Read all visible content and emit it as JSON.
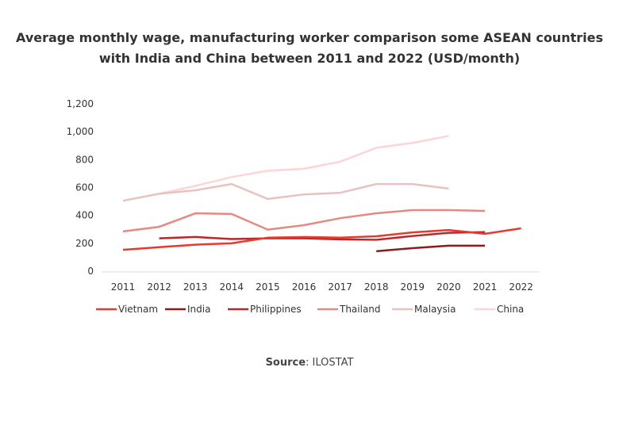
{
  "chart_data": {
    "type": "line",
    "title": "Average monthly wage, manufacturing worker comparison some ASEAN countries with India and China between 2011 and 2022 (USD/month)",
    "x": [
      2011,
      2012,
      2013,
      2014,
      2015,
      2016,
      2017,
      2018,
      2019,
      2020,
      2021,
      2022
    ],
    "ylim": [
      0,
      1200
    ],
    "yticks": [
      0,
      200,
      400,
      600,
      800,
      1000,
      1200
    ],
    "ytick_labels": [
      "0",
      "200",
      "400",
      "600",
      "800",
      "1,000",
      "1,200"
    ],
    "grid": false,
    "legend": "bottom",
    "series": [
      {
        "name": "Vietnam",
        "color": "#e8392f",
        "values": [
          153,
          172,
          190,
          200,
          240,
          245,
          240,
          250,
          278,
          295,
          268,
          307
        ]
      },
      {
        "name": "India",
        "color": "#8b1c1c",
        "values": [
          null,
          null,
          null,
          null,
          null,
          null,
          null,
          143,
          165,
          183,
          183,
          null
        ]
      },
      {
        "name": "Philippines",
        "color": "#b8282a",
        "values": [
          null,
          235,
          245,
          230,
          235,
          235,
          228,
          225,
          252,
          275,
          280,
          null
        ]
      },
      {
        "name": "Thailand",
        "color": "#e48a80",
        "values": [
          285,
          318,
          415,
          410,
          298,
          330,
          380,
          415,
          438,
          438,
          432,
          null
        ]
      },
      {
        "name": "Malaysia",
        "color": "#e8c2c0",
        "values": [
          505,
          555,
          580,
          625,
          518,
          550,
          562,
          625,
          625,
          592,
          null,
          null
        ]
      },
      {
        "name": "China",
        "color": "#fdd5d5",
        "values": [
          null,
          555,
          612,
          675,
          720,
          735,
          785,
          885,
          920,
          970,
          null,
          null
        ]
      }
    ]
  },
  "source_label": "Source",
  "source_value": ": ILOSTAT"
}
